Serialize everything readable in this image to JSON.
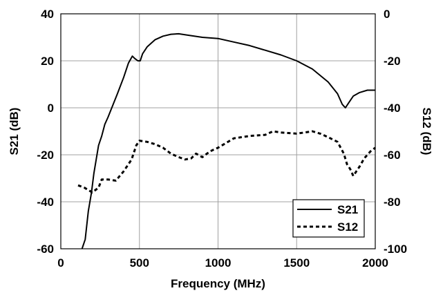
{
  "chart_data": {
    "type": "line",
    "xlabel": "Frequency (MHz)",
    "ylabel_left": "S21 (dB)",
    "ylabel_right": "S12 (dB)",
    "xlim": [
      0,
      2000
    ],
    "ylim_left": [
      -60,
      40
    ],
    "ylim_right": [
      -100,
      0
    ],
    "x_ticks": [
      "0",
      "500",
      "1000",
      "1500",
      "2000"
    ],
    "y_left_ticks": [
      "40",
      "20",
      "0",
      "-20",
      "-40",
      "-60"
    ],
    "y_right_ticks": [
      "0",
      "-20",
      "-40",
      "-60",
      "-80",
      "-100"
    ],
    "grid": true,
    "legend_position": "bottom-right",
    "series": [
      {
        "name": "S21",
        "axis": "left",
        "style": "solid",
        "color": "#000000",
        "points": [
          [
            135,
            -60
          ],
          [
            155,
            -56
          ],
          [
            175,
            -44
          ],
          [
            195,
            -36
          ],
          [
            210,
            -28
          ],
          [
            225,
            -22
          ],
          [
            240,
            -16
          ],
          [
            260,
            -12
          ],
          [
            280,
            -7
          ],
          [
            300,
            -4
          ],
          [
            330,
            1
          ],
          [
            360,
            6
          ],
          [
            400,
            13
          ],
          [
            430,
            19
          ],
          [
            455,
            22
          ],
          [
            470,
            21
          ],
          [
            490,
            20
          ],
          [
            505,
            20
          ],
          [
            520,
            23
          ],
          [
            550,
            26
          ],
          [
            600,
            29
          ],
          [
            650,
            30.5
          ],
          [
            700,
            31.3
          ],
          [
            750,
            31.5
          ],
          [
            800,
            31
          ],
          [
            900,
            30
          ],
          [
            1000,
            29.5
          ],
          [
            1100,
            28
          ],
          [
            1200,
            26.5
          ],
          [
            1300,
            24.5
          ],
          [
            1400,
            22.5
          ],
          [
            1500,
            20
          ],
          [
            1600,
            16.5
          ],
          [
            1700,
            11
          ],
          [
            1760,
            6
          ],
          [
            1790,
            1.5
          ],
          [
            1810,
            0
          ],
          [
            1830,
            2
          ],
          [
            1860,
            5
          ],
          [
            1900,
            6.5
          ],
          [
            1950,
            7.5
          ],
          [
            2000,
            7.5
          ]
        ]
      },
      {
        "name": "S12",
        "axis": "right",
        "style": "dashed",
        "color": "#000000",
        "points": [
          [
            110,
            -73
          ],
          [
            150,
            -74
          ],
          [
            200,
            -76
          ],
          [
            240,
            -74
          ],
          [
            260,
            -70.5
          ],
          [
            300,
            -70.5
          ],
          [
            350,
            -71
          ],
          [
            400,
            -67
          ],
          [
            450,
            -62
          ],
          [
            480,
            -56
          ],
          [
            500,
            -54
          ],
          [
            550,
            -54.5
          ],
          [
            600,
            -55.5
          ],
          [
            650,
            -57
          ],
          [
            700,
            -59.5
          ],
          [
            750,
            -61
          ],
          [
            790,
            -62
          ],
          [
            830,
            -61.5
          ],
          [
            860,
            -59.5
          ],
          [
            900,
            -61
          ],
          [
            950,
            -58.5
          ],
          [
            1000,
            -57
          ],
          [
            1050,
            -55
          ],
          [
            1100,
            -53
          ],
          [
            1150,
            -52.5
          ],
          [
            1200,
            -52
          ],
          [
            1300,
            -51.5
          ],
          [
            1350,
            -50
          ],
          [
            1400,
            -50.5
          ],
          [
            1500,
            -51
          ],
          [
            1600,
            -50
          ],
          [
            1650,
            -51
          ],
          [
            1700,
            -52.5
          ],
          [
            1760,
            -54.5
          ],
          [
            1800,
            -59.5
          ],
          [
            1820,
            -64
          ],
          [
            1840,
            -66
          ],
          [
            1860,
            -69
          ],
          [
            1880,
            -67
          ],
          [
            1900,
            -65
          ],
          [
            1930,
            -61.5
          ],
          [
            1970,
            -58.5
          ],
          [
            2000,
            -57
          ]
        ]
      }
    ]
  }
}
